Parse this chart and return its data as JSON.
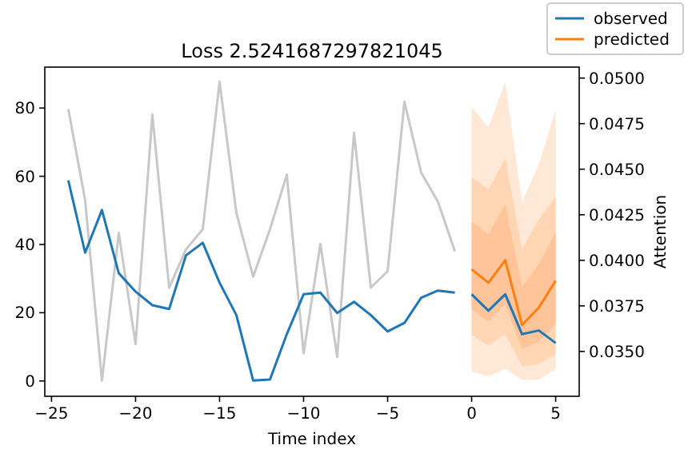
{
  "chart_data": {
    "type": "line",
    "title": "Loss 2.5241687297821045",
    "xlabel": "Time index",
    "y2label": "Attention",
    "xlim": [
      -25.4,
      6.4
    ],
    "xticks": [
      -25,
      -20,
      -15,
      -10,
      -5,
      0,
      5
    ],
    "ylim": [
      -4.5,
      92
    ],
    "yticks": [
      0,
      20,
      40,
      60,
      80
    ],
    "y2lim": [
      0.03254,
      0.0506
    ],
    "y2ticks": [
      {
        "value": 0.035,
        "label": "0.0350"
      },
      {
        "value": 0.0375,
        "label": "0.0375"
      },
      {
        "value": 0.04,
        "label": "0.0400"
      },
      {
        "value": 0.0425,
        "label": "0.0425"
      },
      {
        "value": 0.045,
        "label": "0.0450"
      },
      {
        "value": 0.0475,
        "label": "0.0475"
      },
      {
        "value": 0.05,
        "label": "0.0500"
      }
    ],
    "grid": false,
    "legend": "top right",
    "series": [
      {
        "color": "#ffe9d6",
        "x": [
          0,
          1,
          2,
          3,
          4,
          5
        ],
        "values": [
          null,
          null,
          null,
          null,
          null,
          null
        ],
        "lower": [
          2.8,
          1.3,
          3.5,
          0.3,
          0.3,
          3.5
        ],
        "upper": [
          80.3,
          74.4,
          87.6,
          52.5,
          63.5,
          79.5
        ]
      },
      {
        "color": "#ffd6b3",
        "x": [
          0,
          1,
          2,
          3,
          4,
          5
        ],
        "values": [
          null,
          null,
          null,
          null,
          null,
          null
        ],
        "lower": [
          13.5,
          10.4,
          13.7,
          4.2,
          5.0,
          7.9
        ],
        "upper": [
          59.8,
          56.1,
          65.2,
          38.6,
          47.4,
          53.9
        ]
      },
      {
        "color": "#ffc499",
        "x": [
          0,
          1,
          2,
          3,
          4,
          5
        ],
        "values": [
          null,
          null,
          null,
          null,
          null,
          null
        ],
        "lower": [
          21.1,
          17.4,
          22.5,
          9.4,
          11.5,
          16.7
        ],
        "upper": [
          46.6,
          43.0,
          51.8,
          27.6,
          34.2,
          43.7
        ]
      },
      {
        "color": "#c8c8c8",
        "axis": "y2",
        "x": [
          -24,
          -23,
          -22,
          -21,
          -20,
          -19,
          -18,
          -17,
          -16,
          -15,
          -14,
          -13,
          -12,
          -11,
          -10,
          -9,
          -8,
          -7,
          -6,
          -5,
          -4,
          -3,
          -2,
          -1
        ],
        "values": [
          0.0483,
          0.0433,
          0.0334,
          0.0415,
          0.0354,
          0.048,
          0.0385,
          0.0406,
          0.0417,
          0.0498,
          0.0426,
          0.0391,
          0.0417,
          0.0447,
          0.0349,
          0.0409,
          0.0347,
          0.047,
          0.0385,
          0.0394,
          0.0487,
          0.0448,
          0.0432,
          0.0405
        ]
      },
      {
        "name": "observed",
        "color": "#1f77b4",
        "x": [
          -24,
          -23,
          -22,
          -21,
          -20,
          -19,
          -18,
          -17,
          -16,
          -15,
          -14,
          -13,
          -12,
          -11,
          -10,
          -9,
          -8,
          -7,
          -6,
          -5,
          -4,
          -3,
          -2,
          -1,
          -0.5,
          0,
          1,
          2,
          3,
          4,
          5
        ],
        "values": [
          58.8,
          37.6,
          50.1,
          31.6,
          26.2,
          22.2,
          21.1,
          36.8,
          40.5,
          28.8,
          19.3,
          0.1,
          0.4,
          13.7,
          25.4,
          25.9,
          19.9,
          23.2,
          19.3,
          14.5,
          17.0,
          24.4,
          26.5,
          25.9,
          null,
          25.4,
          20.6,
          25.4,
          13.7,
          14.8,
          11.1
        ]
      },
      {
        "name": "predicted",
        "color": "#ff7f0e",
        "x": [
          0,
          1,
          2,
          3,
          4,
          5
        ],
        "values": [
          32.7,
          28.8,
          35.4,
          16.4,
          21.5,
          29.4
        ]
      }
    ]
  }
}
